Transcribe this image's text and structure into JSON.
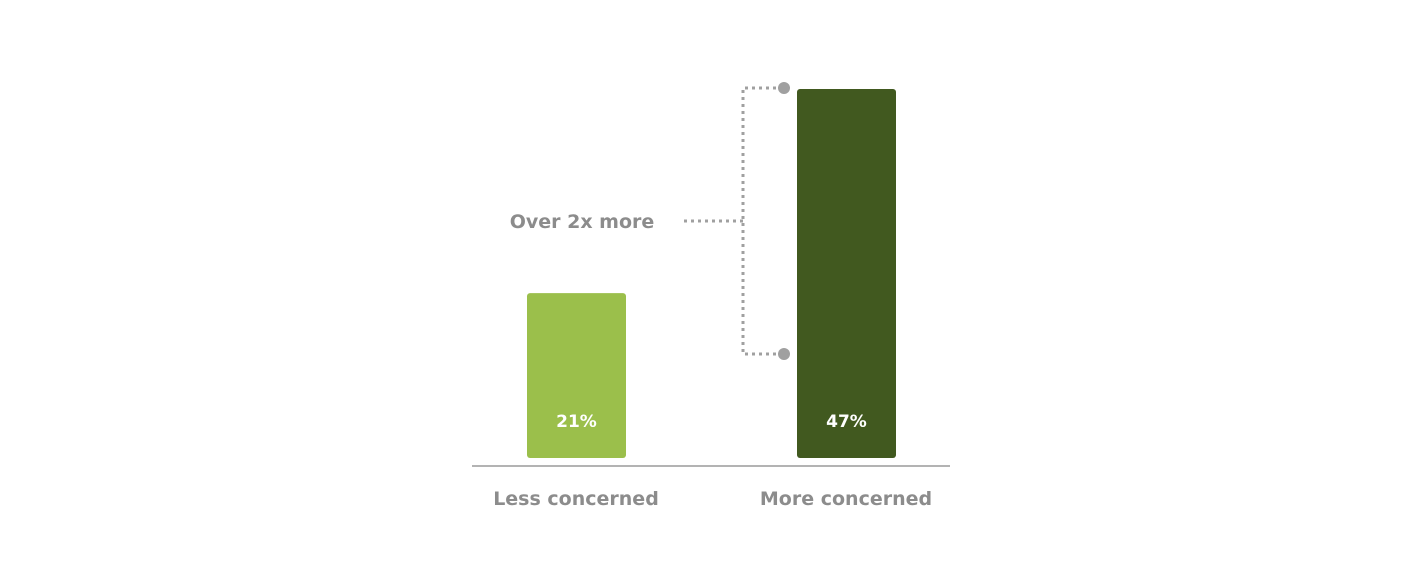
{
  "chart_data": {
    "type": "bar",
    "categories": [
      "Less concerned",
      "More concerned"
    ],
    "values": [
      21,
      47
    ],
    "data_labels": [
      "21%",
      "47%"
    ],
    "colors": [
      "#9bbf4b",
      "#41591f"
    ],
    "annotation": "Over 2x more",
    "title": "",
    "xlabel": "",
    "ylabel": "",
    "ylim": [
      0,
      47
    ],
    "grid": false,
    "legend": "none",
    "axis_color": "#b3b3b3",
    "annotation_color": "#a0a0a0"
  }
}
